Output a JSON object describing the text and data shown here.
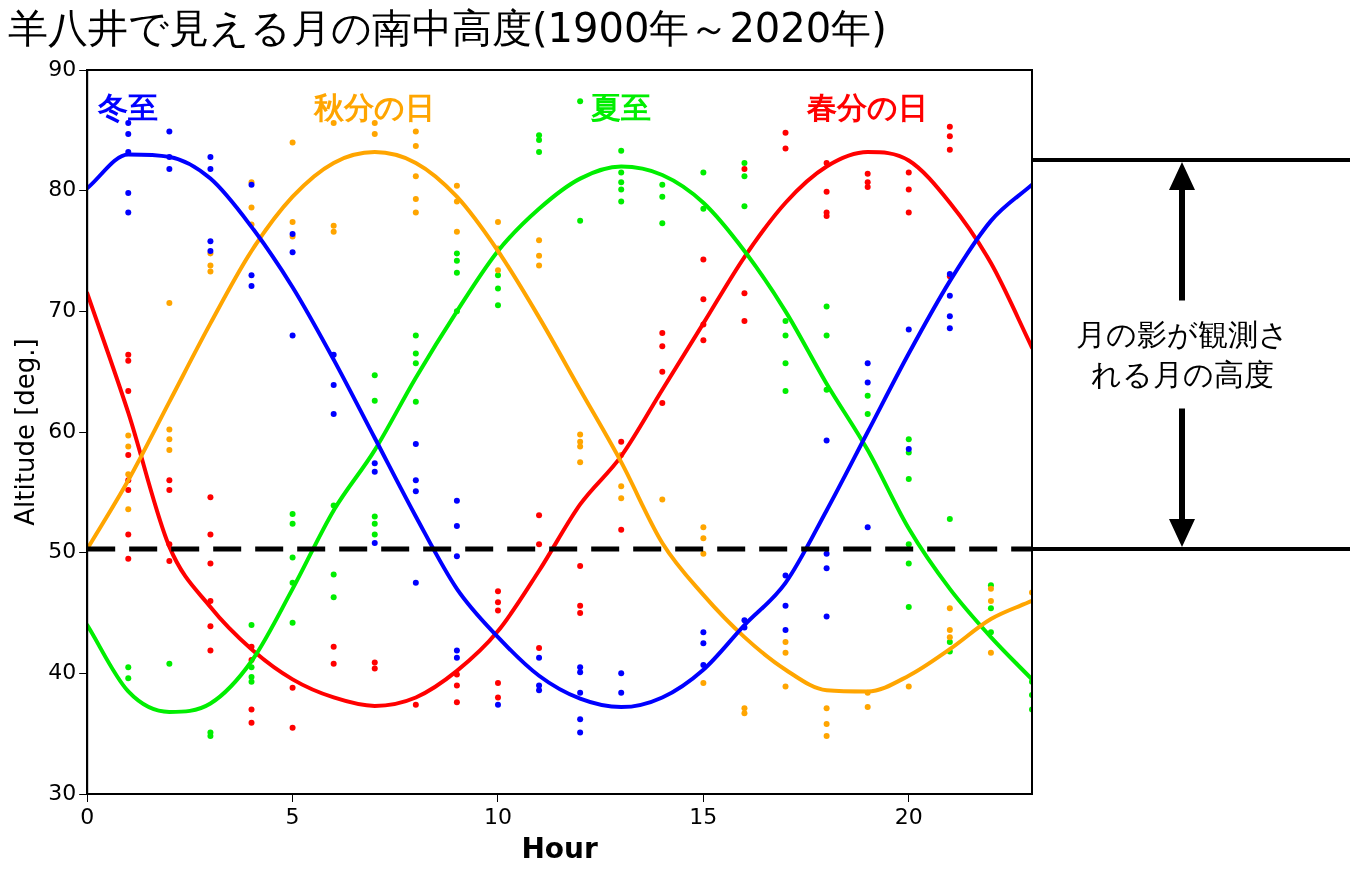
{
  "chart_data": {
    "type": "line",
    "title": "羊八井で見える月の南中高度(1900年～2020年)",
    "xlabel": "Hour",
    "ylabel": "Altitude [deg.]",
    "xlim": [
      0,
      23
    ],
    "xticks": [
      0,
      5,
      10,
      15,
      20
    ],
    "ylim": [
      30,
      90
    ],
    "yticks": [
      30,
      40,
      50,
      60,
      70,
      80,
      90
    ],
    "grid": false,
    "series": [
      {
        "name": "冬至",
        "type": "line",
        "color": "#0000ff",
        "marker": "none",
        "x": [
          0,
          1,
          2,
          3,
          4,
          5,
          6,
          7,
          8,
          9,
          10,
          11,
          12,
          13,
          14,
          15,
          16,
          17,
          18,
          19,
          20,
          21,
          22,
          23
        ],
        "values": [
          80.2,
          83,
          82.8,
          81,
          77,
          72,
          66,
          59.5,
          53,
          47,
          43,
          39.8,
          37.9,
          37.2,
          38,
          40.3,
          44,
          47.5,
          53.5,
          60,
          66.5,
          72.5,
          77.5,
          80.5
        ]
      },
      {
        "name": "秋分の日",
        "type": "line",
        "color": "#ffa500",
        "marker": "none",
        "x": [
          0,
          1,
          2,
          3,
          4,
          5,
          6,
          7,
          8,
          9,
          10,
          11,
          12,
          13,
          14,
          15,
          16,
          17,
          18,
          19,
          20,
          21,
          22,
          23
        ],
        "values": [
          50.3,
          56,
          62.5,
          69,
          75,
          79.5,
          82.3,
          83.2,
          82.3,
          79.5,
          75,
          69.5,
          63.5,
          57.5,
          50.8,
          46.5,
          43,
          40.3,
          38.6,
          38.5,
          39.8,
          42,
          44.5,
          46
        ]
      },
      {
        "name": "夏至",
        "type": "line",
        "color": "#00ee00",
        "marker": "none",
        "x": [
          0,
          1,
          2,
          3,
          4,
          5,
          6,
          7,
          8,
          9,
          10,
          11,
          12,
          13,
          14,
          15,
          16,
          17,
          18,
          19,
          20,
          21,
          22,
          23
        ],
        "values": [
          44,
          38.5,
          36.8,
          37.5,
          41,
          47,
          53.5,
          58.5,
          64.5,
          70,
          75,
          78.5,
          81,
          82,
          81.3,
          79,
          75,
          70,
          64,
          58.5,
          52,
          47,
          43,
          39.5
        ]
      },
      {
        "name": "春分の日",
        "type": "line",
        "color": "#ff0000",
        "marker": "none",
        "x": [
          0,
          1,
          2,
          3,
          4,
          5,
          6,
          7,
          8,
          9,
          10,
          11,
          12,
          13,
          14,
          15,
          16,
          17,
          18,
          19,
          20,
          21,
          22,
          23
        ],
        "values": [
          71.5,
          61.6,
          50.5,
          45.5,
          42,
          39.5,
          38,
          37.3,
          38,
          40.2,
          43.5,
          48.5,
          54,
          58,
          63.5,
          69,
          74.5,
          79,
          82,
          83.2,
          82.5,
          79,
          74,
          67
        ]
      },
      {
        "type": "scatter",
        "color": "#0000ff",
        "marker": "circle",
        "x": [
          1,
          1,
          1,
          1,
          1,
          2,
          2,
          2,
          3,
          3,
          3,
          3,
          4,
          4,
          4,
          5,
          5,
          5,
          6,
          6,
          6,
          7,
          7,
          7,
          8,
          8,
          8,
          8,
          9,
          9,
          9,
          9,
          9,
          10,
          11,
          11,
          11,
          12,
          12,
          12,
          12,
          12,
          13,
          13,
          15,
          15,
          15,
          16,
          16,
          17,
          17,
          17,
          18,
          18,
          18,
          18,
          19,
          19,
          19,
          20,
          20,
          21,
          21,
          21,
          21
        ],
        "values": [
          85.6,
          84.7,
          83.2,
          79.8,
          78.2,
          84.9,
          82.8,
          81.8,
          82.8,
          81.8,
          75.8,
          75.0,
          80.5,
          73.0,
          72.1,
          76.4,
          74.9,
          68.0,
          66.4,
          63.9,
          61.5,
          57.4,
          56.7,
          50.8,
          59.0,
          56.0,
          55.1,
          47.5,
          54.3,
          52.2,
          49.7,
          41.9,
          41.3,
          37.4,
          41.3,
          39.0,
          38.6,
          40.5,
          40.1,
          38.4,
          36.2,
          35.1,
          40.0,
          38.4,
          43.4,
          42.5,
          40.7,
          44.4,
          43.8,
          48.1,
          45.6,
          43.6,
          59.3,
          49.9,
          48.7,
          44.7,
          65.7,
          64.1,
          52.1,
          68.5,
          58.6,
          73.1,
          71.3,
          69.6,
          68.6
        ]
      },
      {
        "type": "scatter",
        "color": "#ffa500",
        "marker": "circle",
        "x": [
          1,
          1,
          1,
          1,
          2,
          2,
          2,
          2,
          3,
          3,
          3,
          4,
          4,
          4,
          5,
          5,
          5,
          6,
          6,
          6,
          7,
          7,
          8,
          8,
          8,
          8,
          8,
          9,
          9,
          9,
          10,
          10,
          10,
          11,
          11,
          11,
          12,
          12,
          12,
          12,
          13,
          13,
          13,
          14,
          15,
          15,
          15,
          15,
          16,
          16,
          17,
          17,
          17,
          18,
          18,
          18,
          19,
          19,
          20,
          21,
          21,
          21,
          22,
          22,
          22,
          23
        ],
        "values": [
          59.7,
          58.8,
          56.5,
          53.6,
          70.7,
          60.2,
          59.4,
          58.5,
          74.8,
          73.8,
          73.3,
          80.7,
          78.6,
          77.2,
          84.0,
          77.4,
          76.2,
          85.6,
          77.1,
          76.6,
          85.6,
          84.7,
          84.9,
          83.7,
          81.2,
          79.3,
          78.2,
          80.4,
          79.1,
          76.6,
          77.4,
          75.2,
          73.4,
          75.9,
          74.6,
          73.8,
          59.8,
          59.2,
          58.8,
          57.5,
          58.1,
          55.5,
          54.5,
          54.4,
          52.1,
          51.2,
          49.9,
          39.2,
          37.1,
          36.7,
          42.6,
          41.7,
          38.9,
          37.1,
          35.8,
          34.8,
          38.4,
          37.2,
          38.9,
          45.4,
          43.6,
          43.0,
          47.0,
          46.0,
          41.7,
          46.7
        ]
      },
      {
        "type": "scatter",
        "color": "#00ee00",
        "marker": "circle",
        "x": [
          1,
          1,
          2,
          3,
          3,
          4,
          4,
          4,
          4,
          5,
          5,
          5,
          5,
          5,
          6,
          6,
          6,
          7,
          7,
          7,
          7,
          7,
          8,
          8,
          8,
          8,
          9,
          9,
          9,
          9,
          10,
          10,
          10,
          11,
          11,
          11,
          12,
          12,
          13,
          13,
          13,
          13,
          13,
          14,
          14,
          14,
          15,
          15,
          16,
          16,
          16,
          17,
          17,
          17,
          17,
          18,
          18,
          18,
          19,
          19,
          20,
          20,
          20,
          20,
          20,
          20,
          21,
          21,
          21,
          22,
          22,
          22,
          23,
          23,
          23
        ],
        "values": [
          40.5,
          39.6,
          40.8,
          35.1,
          34.8,
          44.0,
          40.5,
          39.7,
          39.3,
          53.2,
          52.4,
          49.6,
          47.5,
          44.2,
          53.9,
          48.2,
          46.3,
          64.7,
          62.6,
          53.0,
          52.4,
          51.5,
          68.0,
          66.5,
          65.7,
          62.5,
          74.8,
          74.2,
          73.2,
          70.0,
          73.0,
          71.9,
          70.5,
          84.6,
          84.2,
          83.2,
          87.4,
          77.5,
          83.3,
          81.5,
          80.7,
          80.1,
          79.1,
          80.5,
          79.5,
          77.3,
          81.5,
          78.5,
          82.3,
          81.2,
          78.7,
          69.2,
          68.0,
          65.7,
          63.4,
          70.4,
          68.0,
          63.5,
          63.0,
          61.5,
          59.4,
          58.3,
          56.1,
          50.7,
          49.1,
          45.5,
          52.8,
          42.6,
          41.8,
          47.3,
          45.4,
          43.4,
          39.3,
          38.2,
          37.0
        ]
      },
      {
        "type": "scatter",
        "color": "#ff0000",
        "marker": "circle",
        "x": [
          1,
          1,
          1,
          1,
          1,
          1,
          1,
          1,
          2,
          2,
          2,
          2,
          3,
          3,
          3,
          3,
          3,
          3,
          4,
          4,
          4,
          4,
          5,
          5,
          6,
          6,
          7,
          7,
          8,
          9,
          9,
          9,
          10,
          10,
          10,
          10,
          10,
          11,
          11,
          11,
          12,
          12,
          12,
          13,
          13,
          14,
          14,
          14,
          14,
          15,
          15,
          15,
          15,
          16,
          16,
          16,
          17,
          17,
          18,
          18,
          18,
          18,
          19,
          19,
          19,
          20,
          20,
          20,
          21,
          21,
          21,
          21
        ],
        "values": [
          66.4,
          65.9,
          63.4,
          58.1,
          56.0,
          55.2,
          51.5,
          49.5,
          56.0,
          55.2,
          50.7,
          49.3,
          54.6,
          51.5,
          49.1,
          46.0,
          43.9,
          41.9,
          42.2,
          41.1,
          37.0,
          35.9,
          38.8,
          35.5,
          42.2,
          40.8,
          40.9,
          40.4,
          37.4,
          39.9,
          39.0,
          37.6,
          46.8,
          45.9,
          45.2,
          39.2,
          38.0,
          53.1,
          50.7,
          42.1,
          48.9,
          45.6,
          45.0,
          59.2,
          51.9,
          68.2,
          67.1,
          65.0,
          62.4,
          74.3,
          71.0,
          68.9,
          67.6,
          81.8,
          71.5,
          69.2,
          84.8,
          83.5,
          82.3,
          79.9,
          78.2,
          77.9,
          81.4,
          80.7,
          80.3,
          81.5,
          80.1,
          78.2,
          85.3,
          84.5,
          83.4,
          72.9
        ]
      }
    ],
    "ref_lines": [
      {
        "axis": "y",
        "value": 50.3,
        "color": "#000000",
        "line_style": "dashed"
      }
    ],
    "annotations": [
      "月の影が観測される月の高度"
    ]
  }
}
